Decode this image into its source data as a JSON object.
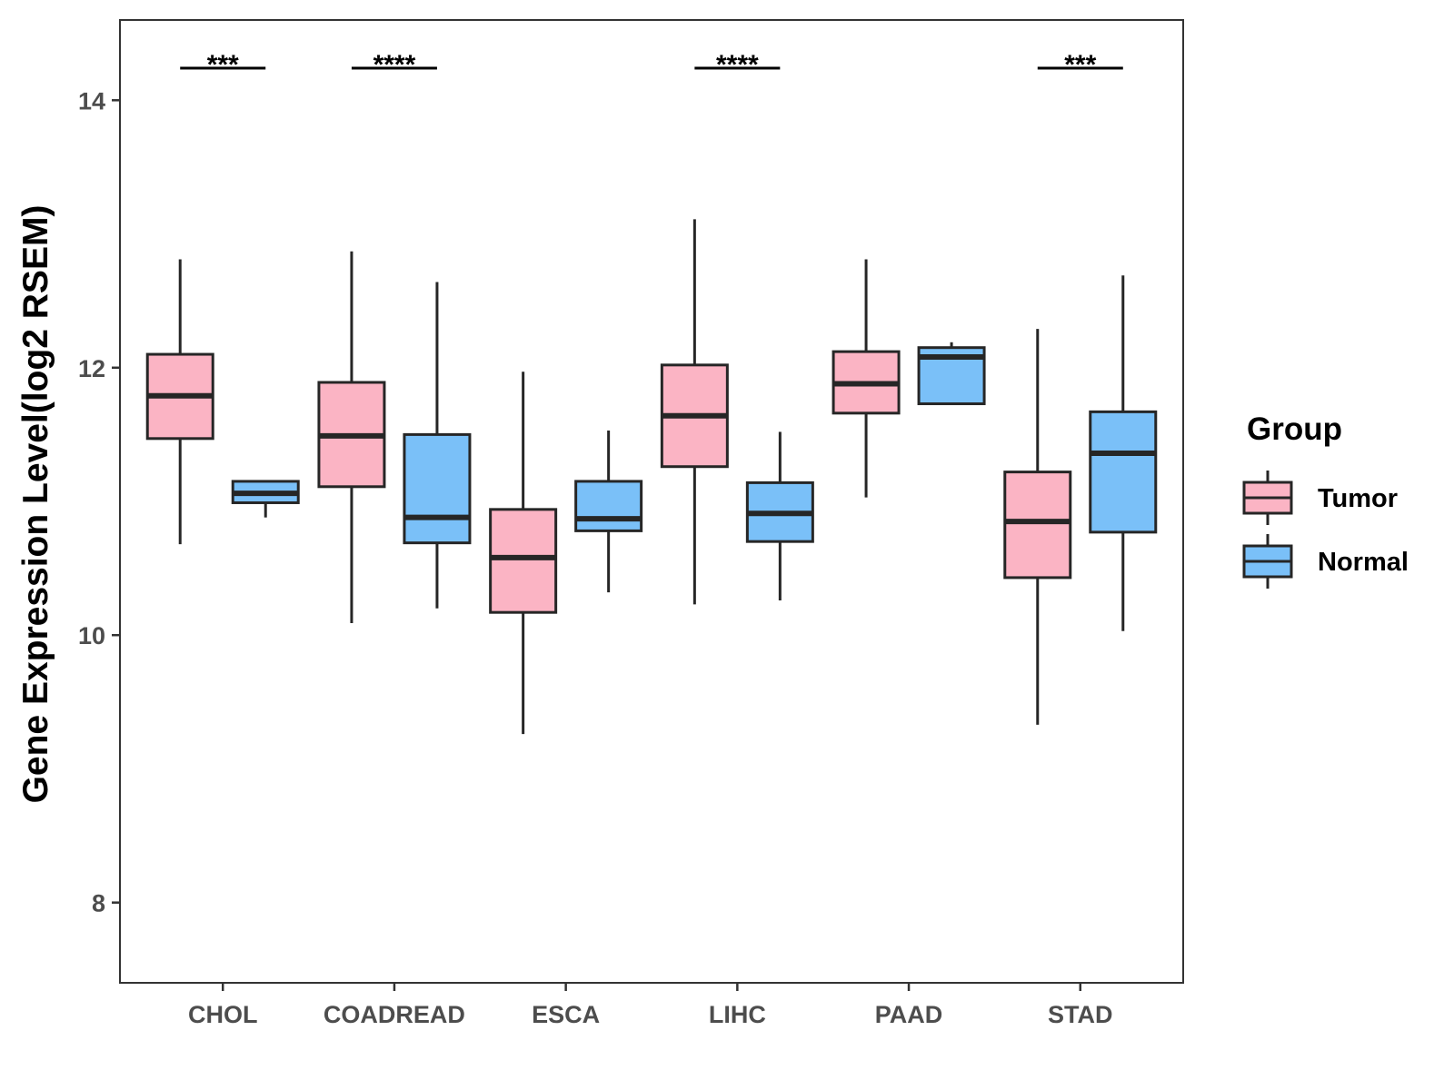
{
  "chart_data": {
    "type": "boxplot",
    "title": "",
    "xlabel": "",
    "ylabel": "Gene Expression Level(log2 RSEM)",
    "ylim": [
      7.4,
      14.6
    ],
    "yticks": [
      8,
      10,
      12,
      14
    ],
    "categories": [
      "CHOL",
      "COADREAD",
      "ESCA",
      "LIHC",
      "PAAD",
      "STAD"
    ],
    "legend": {
      "title": "Group",
      "position": "right"
    },
    "series": [
      {
        "name": "Tumor",
        "color": "#fbb4c4",
        "boxes": [
          {
            "min": 10.68,
            "q1": 11.47,
            "median": 11.79,
            "q3": 12.1,
            "max": 12.81
          },
          {
            "min": 10.09,
            "q1": 11.11,
            "median": 11.49,
            "q3": 11.89,
            "max": 12.87
          },
          {
            "min": 9.26,
            "q1": 10.17,
            "median": 10.58,
            "q3": 10.94,
            "max": 11.97
          },
          {
            "min": 10.23,
            "q1": 11.26,
            "median": 11.64,
            "q3": 12.02,
            "max": 13.11
          },
          {
            "min": 11.03,
            "q1": 11.66,
            "median": 11.88,
            "q3": 12.12,
            "max": 12.81
          },
          {
            "min": 9.33,
            "q1": 10.43,
            "median": 10.85,
            "q3": 11.22,
            "max": 12.29
          }
        ]
      },
      {
        "name": "Normal",
        "color": "#7ac0f8",
        "boxes": [
          {
            "min": 10.88,
            "q1": 10.99,
            "median": 11.06,
            "q3": 11.15,
            "max": 11.15
          },
          {
            "min": 10.2,
            "q1": 10.69,
            "median": 10.88,
            "q3": 11.5,
            "max": 12.64
          },
          {
            "min": 10.32,
            "q1": 10.78,
            "median": 10.87,
            "q3": 11.15,
            "max": 11.53
          },
          {
            "min": 10.26,
            "q1": 10.7,
            "median": 10.91,
            "q3": 11.14,
            "max": 11.52
          },
          {
            "min": 11.73,
            "q1": 11.73,
            "median": 12.08,
            "q3": 12.15,
            "max": 12.19
          },
          {
            "min": 10.03,
            "q1": 10.77,
            "median": 11.36,
            "q3": 11.67,
            "max": 12.69
          }
        ]
      }
    ],
    "significance": [
      {
        "category": "CHOL",
        "label": "***"
      },
      {
        "category": "COADREAD",
        "label": "****"
      },
      {
        "category": "LIHC",
        "label": "****"
      },
      {
        "category": "STAD",
        "label": "***"
      }
    ]
  }
}
